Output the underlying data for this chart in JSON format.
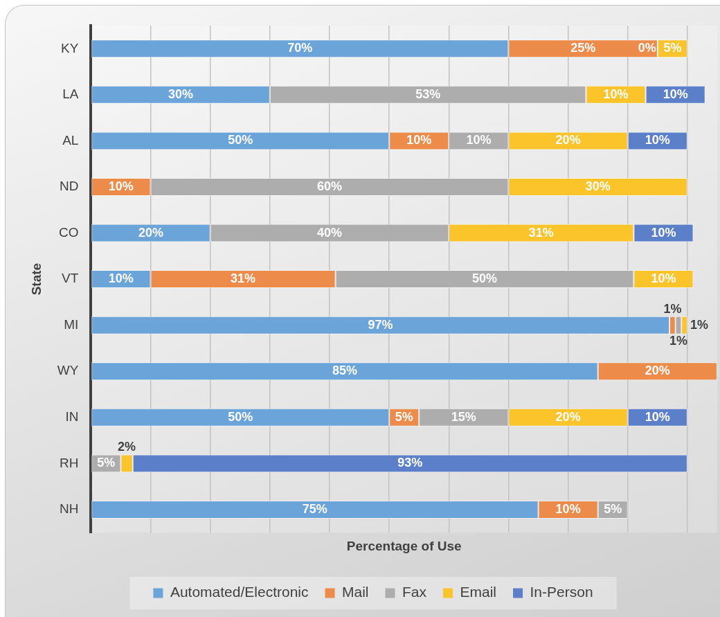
{
  "chart_data": {
    "type": "bar",
    "orientation": "horizontal",
    "stacked": true,
    "xlabel": "Percentage of Use",
    "ylabel": "State",
    "categories": [
      "KY",
      "LA",
      "AL",
      "ND",
      "CO",
      "VT",
      "MI",
      "WY",
      "IN",
      "RH",
      "NH"
    ],
    "series": [
      {
        "name": "Automated/Electronic",
        "color": "#6ba4d9",
        "values": [
          70,
          30,
          50,
          null,
          20,
          10,
          97,
          85,
          50,
          null,
          75
        ],
        "value_labels": [
          "70%",
          "30%",
          "50%",
          null,
          "20%",
          "10%",
          "97%",
          "85%",
          "50%",
          null,
          "75%"
        ]
      },
      {
        "name": "Mail",
        "color": "#ec8b4a",
        "values": [
          25,
          null,
          10,
          10,
          null,
          31,
          1,
          20,
          5,
          null,
          10
        ],
        "value_labels": [
          "25%",
          null,
          "10%",
          "10%",
          null,
          "31%",
          "1%",
          "20%",
          "5%",
          null,
          "10%"
        ]
      },
      {
        "name": "Fax",
        "color": "#adadad",
        "values": [
          0,
          53,
          10,
          60,
          40,
          50,
          1,
          null,
          15,
          5,
          5
        ],
        "value_labels": [
          "0%",
          "53%",
          "10%",
          "60%",
          "40%",
          "50%",
          "1%",
          null,
          "15%",
          "5%",
          "5%"
        ]
      },
      {
        "name": "Email",
        "color": "#fbc42a",
        "values": [
          5,
          10,
          20,
          30,
          31,
          10,
          1,
          null,
          20,
          2,
          null
        ],
        "value_labels": [
          "5%",
          "10%",
          "20%",
          "30%",
          "31%",
          "10%",
          "1%",
          null,
          "20%",
          "2%",
          null
        ]
      },
      {
        "name": "In-Person",
        "color": "#5b80c9",
        "values": [
          null,
          10,
          10,
          null,
          10,
          null,
          null,
          null,
          10,
          93,
          null
        ],
        "value_labels": [
          null,
          "10%",
          "10%",
          null,
          "10%",
          null,
          null,
          null,
          "10%",
          "93%",
          null
        ]
      }
    ],
    "xlim": [
      0,
      105
    ],
    "xticks": [
      {
        "value": 0,
        "label": null
      },
      {
        "value": 10,
        "label": null
      },
      {
        "value": 20,
        "label": null
      },
      {
        "value": 30,
        "label": null
      },
      {
        "value": 40,
        "label": null
      },
      {
        "value": 50,
        "label": null
      },
      {
        "value": 60,
        "label": null
      },
      {
        "value": 70,
        "label": null
      },
      {
        "value": 80,
        "label": null
      },
      {
        "value": 90,
        "label": null
      },
      {
        "value": 100,
        "label": null
      }
    ],
    "tick_labels": "y",
    "grid": "x",
    "legend": "bottom"
  }
}
